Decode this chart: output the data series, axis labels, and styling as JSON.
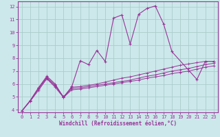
{
  "background_color": "#cce8ea",
  "grid_color": "#aacccc",
  "line_color": "#993399",
  "xlabel": "Windchill (Refroidissement éolien,°C)",
  "xlim": [
    -0.5,
    23.5
  ],
  "ylim": [
    3.8,
    12.4
  ],
  "xticks": [
    0,
    1,
    2,
    3,
    4,
    5,
    6,
    7,
    8,
    9,
    10,
    11,
    12,
    13,
    14,
    15,
    16,
    17,
    18,
    19,
    20,
    21,
    22,
    23
  ],
  "yticks": [
    4,
    5,
    6,
    7,
    8,
    9,
    10,
    11,
    12
  ],
  "series": [
    {
      "x": [
        0,
        1,
        2,
        3,
        4,
        5,
        6,
        7,
        8,
        9,
        10,
        11,
        12,
        13,
        14,
        15,
        16,
        17,
        18,
        21,
        22,
        23
      ],
      "y": [
        3.9,
        4.7,
        5.7,
        6.6,
        6.0,
        4.95,
        5.8,
        7.8,
        7.5,
        8.6,
        7.75,
        11.1,
        11.35,
        9.1,
        11.4,
        11.85,
        12.05,
        10.65,
        8.5,
        6.35,
        7.75,
        7.75
      ]
    },
    {
      "x": [
        0,
        1,
        2,
        3,
        4,
        5,
        6,
        7,
        8,
        9,
        10,
        11,
        12,
        13,
        14,
        15,
        16,
        17,
        18,
        19,
        20,
        21,
        22,
        23
      ],
      "y": [
        3.9,
        4.7,
        5.7,
        6.5,
        5.9,
        5.0,
        5.75,
        5.8,
        5.9,
        6.0,
        6.15,
        6.3,
        6.45,
        6.55,
        6.7,
        6.85,
        7.0,
        7.15,
        7.3,
        7.45,
        7.55,
        7.65,
        7.75,
        7.75
      ]
    },
    {
      "x": [
        0,
        1,
        2,
        3,
        4,
        5,
        6,
        7,
        8,
        9,
        10,
        11,
        12,
        13,
        14,
        15,
        16,
        17,
        18,
        19,
        20,
        21,
        22,
        23
      ],
      "y": [
        3.9,
        4.7,
        5.6,
        6.45,
        5.85,
        5.0,
        5.65,
        5.7,
        5.8,
        5.9,
        6.0,
        6.1,
        6.2,
        6.3,
        6.45,
        6.6,
        6.7,
        6.85,
        7.0,
        7.1,
        7.2,
        7.35,
        7.5,
        7.6
      ]
    },
    {
      "x": [
        0,
        1,
        2,
        3,
        4,
        5,
        6,
        7,
        8,
        9,
        10,
        11,
        12,
        13,
        14,
        15,
        16,
        17,
        18,
        19,
        20,
        21,
        22,
        23
      ],
      "y": [
        3.9,
        4.65,
        5.5,
        6.4,
        5.75,
        4.95,
        5.55,
        5.6,
        5.7,
        5.8,
        5.9,
        6.0,
        6.1,
        6.2,
        6.3,
        6.45,
        6.55,
        6.65,
        6.8,
        6.9,
        7.0,
        7.15,
        7.3,
        7.4
      ]
    }
  ],
  "title_fontsize": 5,
  "tick_fontsize": 5,
  "xlabel_fontsize": 5.5
}
